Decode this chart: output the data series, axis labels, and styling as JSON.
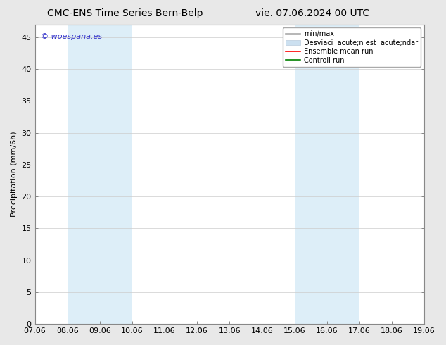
{
  "title_left": "CMC-ENS Time Series Bern-Belp",
  "title_right": "vie. 07.06.2024 00 UTC",
  "ylabel": "Precipitation (mm/6h)",
  "xlabel_ticks": [
    "07.06",
    "08.06",
    "09.06",
    "10.06",
    "11.06",
    "12.06",
    "13.06",
    "14.06",
    "15.06",
    "16.06",
    "17.06",
    "18.06",
    "19.06"
  ],
  "xlim": [
    0,
    12
  ],
  "ylim": [
    0,
    47
  ],
  "yticks": [
    0,
    5,
    10,
    15,
    20,
    25,
    30,
    35,
    40,
    45
  ],
  "shaded_regions": [
    {
      "xstart": 1.0,
      "xend": 3.0,
      "color": "#ddeef8"
    },
    {
      "xstart": 8.0,
      "xend": 10.0,
      "color": "#ddeef8"
    }
  ],
  "watermark_text": "© woespana.es",
  "watermark_color": "#3333cc",
  "legend_label_minmax": "min/max",
  "legend_label_std": "Desviaci  acute;n est  acute;ndar",
  "legend_label_ensemble": "Ensemble mean run",
  "legend_label_control": "Controll run",
  "legend_color_minmax": "#aaaaaa",
  "legend_color_std": "#cce0f0",
  "legend_color_ensemble": "red",
  "legend_color_control": "green",
  "bg_color": "#e8e8e8",
  "plot_bg_color": "#ffffff",
  "grid_color": "#cccccc",
  "spine_color": "#888888",
  "tick_label_fontsize": 8,
  "axis_label_fontsize": 8,
  "title_fontsize": 10,
  "watermark_fontsize": 8
}
